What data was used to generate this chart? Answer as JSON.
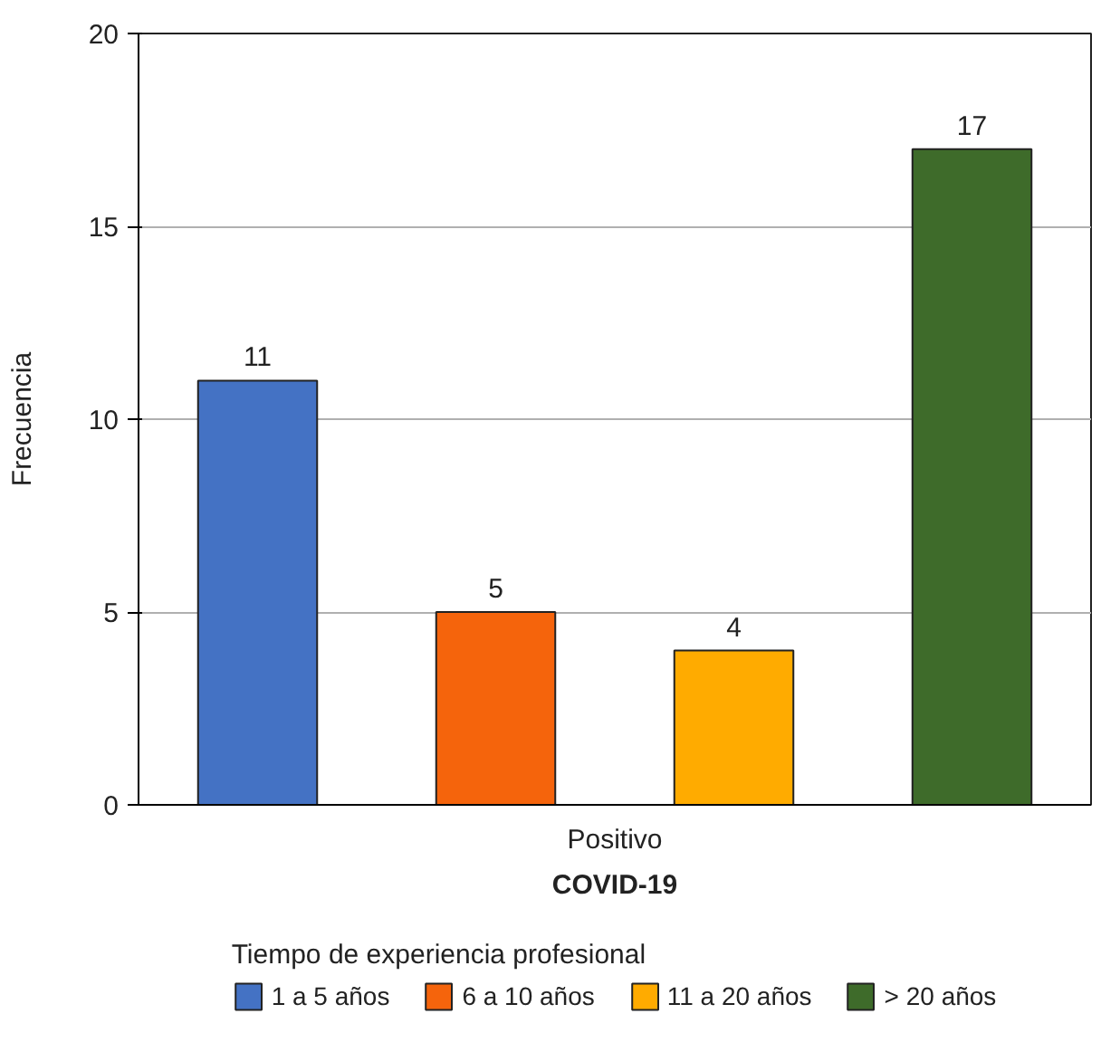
{
  "chart_data": {
    "type": "bar",
    "xlabel": "COVID-19",
    "ylabel": "Frecuencia",
    "legend_title": "Tiempo de experiencia profesional",
    "categories": [
      "Positivo"
    ],
    "series": [
      {
        "name": "1 a 5 años",
        "color": "#4472c4",
        "values": [
          11
        ]
      },
      {
        "name": "6 a 10 años",
        "color": "#f5640c",
        "values": [
          5
        ]
      },
      {
        "name": "11 a 20 años",
        "color": "#ffab00",
        "values": [
          4
        ]
      },
      {
        "name": "> 20 años",
        "color": "#3e6b2a",
        "values": [
          17
        ]
      }
    ],
    "ylim": [
      0,
      20
    ],
    "yticks": [
      0,
      5,
      10,
      15,
      20
    ],
    "grid": "y",
    "legend": "bottom",
    "data_labels": true
  }
}
